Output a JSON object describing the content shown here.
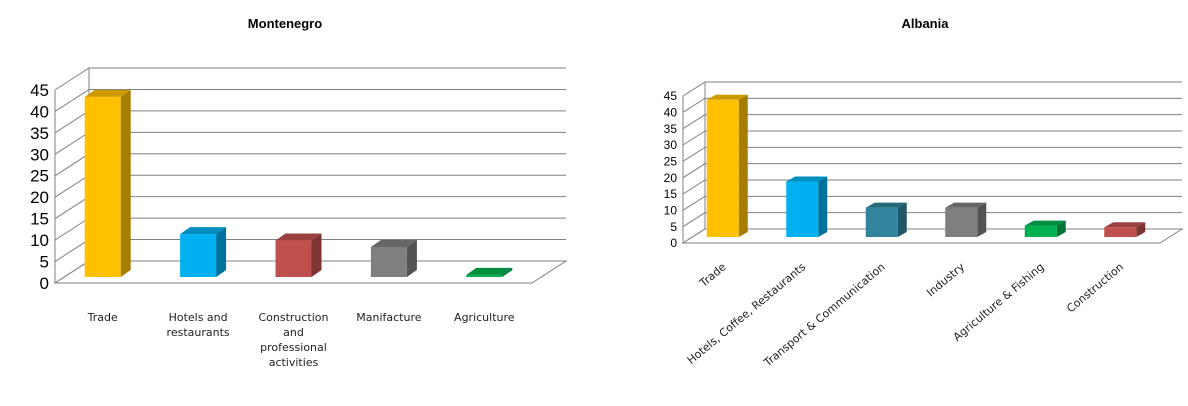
{
  "chart_data": [
    {
      "type": "bar",
      "title": "Montenegro",
      "categories": [
        "Trade",
        "Hotels and restaurants",
        "Construction and professional activities",
        "Manifacture",
        "Agriculture"
      ],
      "category_labels": [
        [
          "Trade"
        ],
        [
          "Hotels and",
          "restaurants"
        ],
        [
          "Construction",
          "and",
          "professional",
          "activities"
        ],
        [
          "Manifacture"
        ],
        [
          "Agriculture"
        ]
      ],
      "values": [
        42,
        10,
        8.5,
        7,
        0.5
      ],
      "colors": [
        "#ffc000",
        "#00b0f0",
        "#c0504d",
        "#7f7f7f",
        "#00b050"
      ],
      "ylim": [
        0,
        45
      ],
      "yticks": [
        0,
        5,
        10,
        15,
        20,
        25,
        30,
        35,
        40,
        45
      ],
      "grid": true,
      "style": "3d-column",
      "xlabel": "",
      "ylabel": ""
    },
    {
      "type": "bar",
      "title": "Albania",
      "categories": [
        "Trade",
        "Hotels, Coffee, Restaurants",
        "Transport & Communication",
        "Industry",
        "Agriculture & Fishing",
        "Construction"
      ],
      "category_labels": [
        [
          "Trade"
        ],
        [
          "Hotels, Coffee, Restaurants"
        ],
        [
          "Transport & Communication"
        ],
        [
          "Industry"
        ],
        [
          "Agriculture & Fishing"
        ],
        [
          "Construction"
        ]
      ],
      "values": [
        42,
        17,
        9,
        9,
        3.5,
        3
      ],
      "colors": [
        "#ffc000",
        "#00b0f0",
        "#31849b",
        "#7f7f7f",
        "#00b050",
        "#c0504d"
      ],
      "ylim": [
        0,
        45
      ],
      "yticks": [
        0,
        5,
        10,
        15,
        20,
        25,
        30,
        35,
        40,
        45
      ],
      "grid": true,
      "style": "3d-column",
      "xlabel": "",
      "ylabel": ""
    }
  ]
}
